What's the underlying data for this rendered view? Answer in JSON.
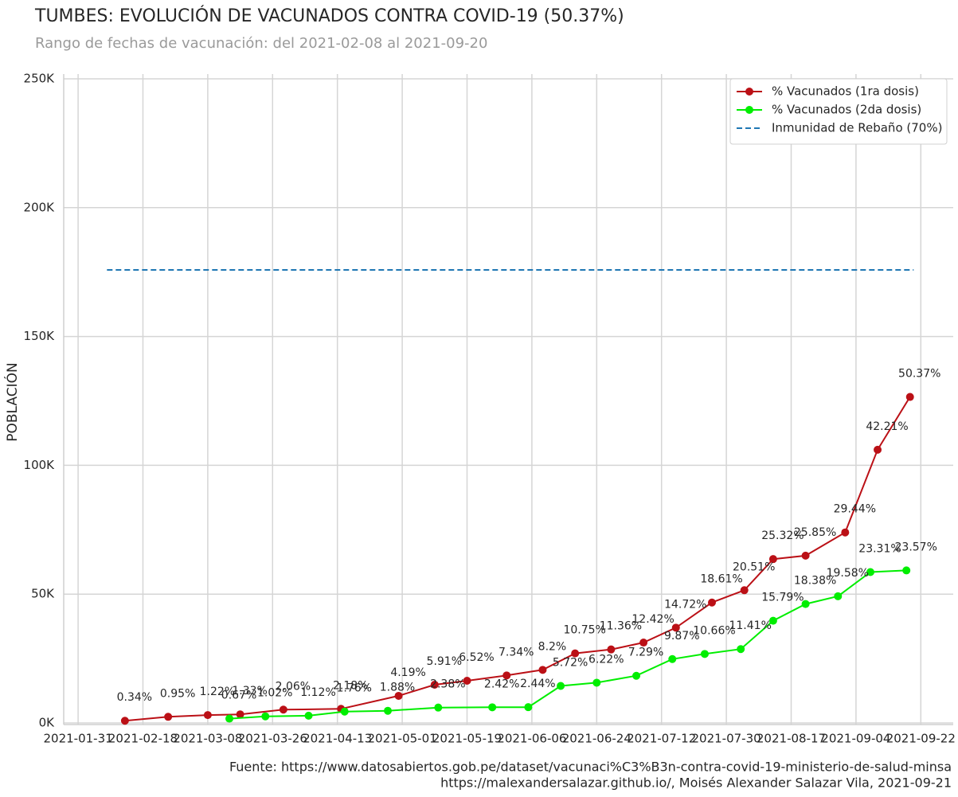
{
  "chart_data": {
    "type": "line",
    "title": "TUMBES: EVOLUCIÓN DE VACUNADOS CONTRA COVID-19 (50.37%)",
    "subtitle": "Rango de fechas de vacunación: del 2021-02-08 al 2021-09-20",
    "y_label": "POBLACIÓN",
    "footnotes": [
      "Fuente: https://www.datosabiertos.gob.pe/dataset/vacunaci%C3%B3n-contra-covid-19-ministerio-de-salud-minsa",
      "https://malexandersalazar.github.io/, Moisés Alexander Salazar Vila, 2021-09-21"
    ],
    "grid": true,
    "legend": "upper right",
    "xlim": [
      "2021-01-27",
      "2021-10-01"
    ],
    "xticks": [
      "2021-01-31",
      "2021-02-18",
      "2021-03-08",
      "2021-03-26",
      "2021-04-13",
      "2021-05-01",
      "2021-05-19",
      "2021-06-06",
      "2021-06-24",
      "2021-07-12",
      "2021-07-30",
      "2021-08-17",
      "2021-09-04",
      "2021-09-22"
    ],
    "ylim": [
      0,
      250000
    ],
    "yticks": [
      {
        "value": 0,
        "label": "0K"
      },
      {
        "value": 50000,
        "label": "50K"
      },
      {
        "value": 100000,
        "label": "100K"
      },
      {
        "value": 150000,
        "label": "150K"
      },
      {
        "value": 200000,
        "label": "200K"
      },
      {
        "value": 250000,
        "label": "250K"
      }
    ],
    "series": [
      {
        "name": "% Vacunados (1ra dosis)",
        "color": "#bb1016",
        "marker": true,
        "linestyle": "solid",
        "x": [
          "2021-02-13",
          "2021-02-25",
          "2021-03-08",
          "2021-03-17",
          "2021-03-29",
          "2021-04-14",
          "2021-04-30",
          "2021-05-10",
          "2021-05-19",
          "2021-05-30",
          "2021-06-09",
          "2021-06-18",
          "2021-06-28",
          "2021-07-07",
          "2021-07-16",
          "2021-07-26",
          "2021-08-04",
          "2021-08-12",
          "2021-08-21",
          "2021-09-01",
          "2021-09-10",
          "2021-09-19"
        ],
        "values": [
          854,
          2386,
          3065,
          3341,
          5175,
          5476,
          10525,
          14846,
          16378,
          18438,
          20598,
          27004,
          28536,
          31199,
          36977,
          46748,
          51521,
          63604,
          64935,
          73953,
          106032,
          126530
        ],
        "value_labels": [
          "0.34%",
          "0.95%",
          "1.22%",
          "1.33%",
          "2.06%",
          "2.18%",
          "4.19%",
          "5.91%",
          "6.52%",
          "7.34%",
          "8.2%",
          "10.75%",
          "11.36%",
          "12.42%",
          "14.72%",
          "18.61%",
          "20.51%",
          "25.32%",
          "25.85%",
          "29.44%",
          "42.21%",
          "50.37%"
        ]
      },
      {
        "name": "% Vacunados (2da dosis)",
        "color": "#00ee00",
        "marker": true,
        "linestyle": "solid",
        "x": [
          "2021-03-14",
          "2021-03-24",
          "2021-04-05",
          "2021-04-15",
          "2021-04-27",
          "2021-05-11",
          "2021-05-26",
          "2021-06-05",
          "2021-06-14",
          "2021-06-24",
          "2021-07-05",
          "2021-07-15",
          "2021-07-24",
          "2021-08-03",
          "2021-08-12",
          "2021-08-21",
          "2021-08-30",
          "2021-09-08",
          "2021-09-18"
        ],
        "values": [
          1683,
          2562,
          2813,
          4421,
          4723,
          5979,
          6079,
          6129,
          14369,
          15625,
          18312,
          24793,
          26778,
          28662,
          39664,
          46171,
          49185,
          58555,
          59208
        ],
        "value_labels": [
          "0.67%",
          "1.02%",
          "1.12%",
          "1.76%",
          "1.88%",
          "2.38%",
          "2.42%",
          "2.44%",
          "5.72%",
          "6.22%",
          "7.29%",
          "9.87%",
          "10.66%",
          "11.41%",
          "15.79%",
          "18.38%",
          "19.58%",
          "23.31%",
          "23.57%"
        ]
      },
      {
        "name": "Inmunidad de Rebaño (70%)",
        "color": "#1f77b4",
        "marker": false,
        "linestyle": "dashed",
        "x": [
          "2021-02-08",
          "2021-09-20"
        ],
        "values": [
          175840,
          175840
        ]
      }
    ]
  }
}
